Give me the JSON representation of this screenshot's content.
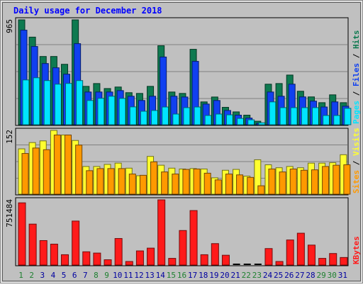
{
  "colors": {
    "background": "#C0C0C0",
    "title": "#0000FF",
    "pages": "#00E5FF",
    "files": "#1040F0",
    "hits": "#0E7A50",
    "visits": "#FFFF30",
    "sites": "#FF9900",
    "kbytes": "#FF1A1A",
    "weekend_label": "#1E8030",
    "weekday_label": "#0000A0"
  },
  "chart_data": {
    "title": "Daily usage for December 2018",
    "days": [
      "1",
      "2",
      "3",
      "4",
      "5",
      "6",
      "7",
      "8",
      "9",
      "10",
      "11",
      "12",
      "13",
      "14",
      "15",
      "16",
      "17",
      "18",
      "19",
      "20",
      "21",
      "22",
      "23",
      "24",
      "25",
      "26",
      "27",
      "28",
      "29",
      "30",
      "31"
    ],
    "weekend_days": [
      "1",
      "2",
      "8",
      "9",
      "15",
      "16",
      "22",
      "23",
      "29",
      "30"
    ],
    "panels": [
      {
        "type": "bar",
        "ymax_label": "965",
        "ylim": [
          0,
          965
        ],
        "grid": true,
        "legend": [
          "Pages",
          "Files",
          "Hits"
        ],
        "series": [
          {
            "name": "Hits",
            "color_key": "hits",
            "values": [
              965,
              806,
              628,
              628,
              556,
              965,
              353,
              379,
              333,
              347,
              295,
              288,
              353,
              727,
              301,
              288,
              694,
              210,
              255,
              160,
              118,
              88,
              32,
              373,
              379,
              457,
              308,
              256,
              203,
              275,
              203
            ]
          },
          {
            "name": "Files",
            "color_key": "files",
            "values": [
              870,
              720,
              563,
              524,
              465,
              746,
              301,
              301,
              301,
              314,
              262,
              223,
              262,
              623,
              262,
              255,
              583,
              190,
              223,
              131,
              88,
              61,
              13,
              301,
              262,
              373,
              256,
              217,
              163,
              210,
              170
            ]
          },
          {
            "name": "Pages",
            "color_key": "pages",
            "values": [
              412,
              432,
              406,
              373,
              380,
              406,
              223,
              243,
              262,
              242,
              164,
              124,
              131,
              163,
              98,
              157,
              163,
              85,
              98,
              91,
              58,
              45,
              18,
              210,
              157,
              157,
              157,
              157,
              85,
              85,
              151
            ]
          }
        ]
      },
      {
        "type": "bar",
        "ymax_label": "152",
        "ylim": [
          0,
          152
        ],
        "grid": true,
        "legend": [
          "Sites",
          "Visits"
        ],
        "series": [
          {
            "name": "Visits",
            "color_key": "visits",
            "values": [
              108,
              123,
              127,
              152,
              141,
              128,
              66,
              66,
              71,
              74,
              62,
              44,
              90,
              69,
              62,
              60,
              61,
              60,
              39,
              57,
              59,
              43,
              82,
              70,
              63,
              66,
              63,
              74,
              74,
              75,
              94
            ]
          },
          {
            "name": "Sites",
            "color_key": "sites",
            "values": [
              97,
              110,
              106,
              141,
              141,
              117,
              56,
              61,
              61,
              61,
              48,
              45,
              77,
              53,
              48,
              59,
              60,
              50,
              34,
              48,
              46,
              40,
              20,
              60,
              53,
              60,
              57,
              58,
              66,
              69,
              70
            ]
          }
        ]
      },
      {
        "type": "bar",
        "ymax_label": "751484",
        "ylim": [
          0,
          751484
        ],
        "grid": false,
        "legend": [
          "KBytes"
        ],
        "series": [
          {
            "name": "KBytes",
            "color_key": "kbytes",
            "values": [
              717000,
              472000,
              282000,
              241000,
              119000,
              507000,
              153000,
              138000,
              61000,
              306000,
              41000,
              163000,
              195000,
              751484,
              77000,
              398000,
              628000,
              119000,
              247000,
              113000,
              0,
              0,
              0,
              190000,
              41000,
              289000,
              367000,
              230000,
              77000,
              133000,
              87000
            ]
          }
        ]
      }
    ]
  }
}
